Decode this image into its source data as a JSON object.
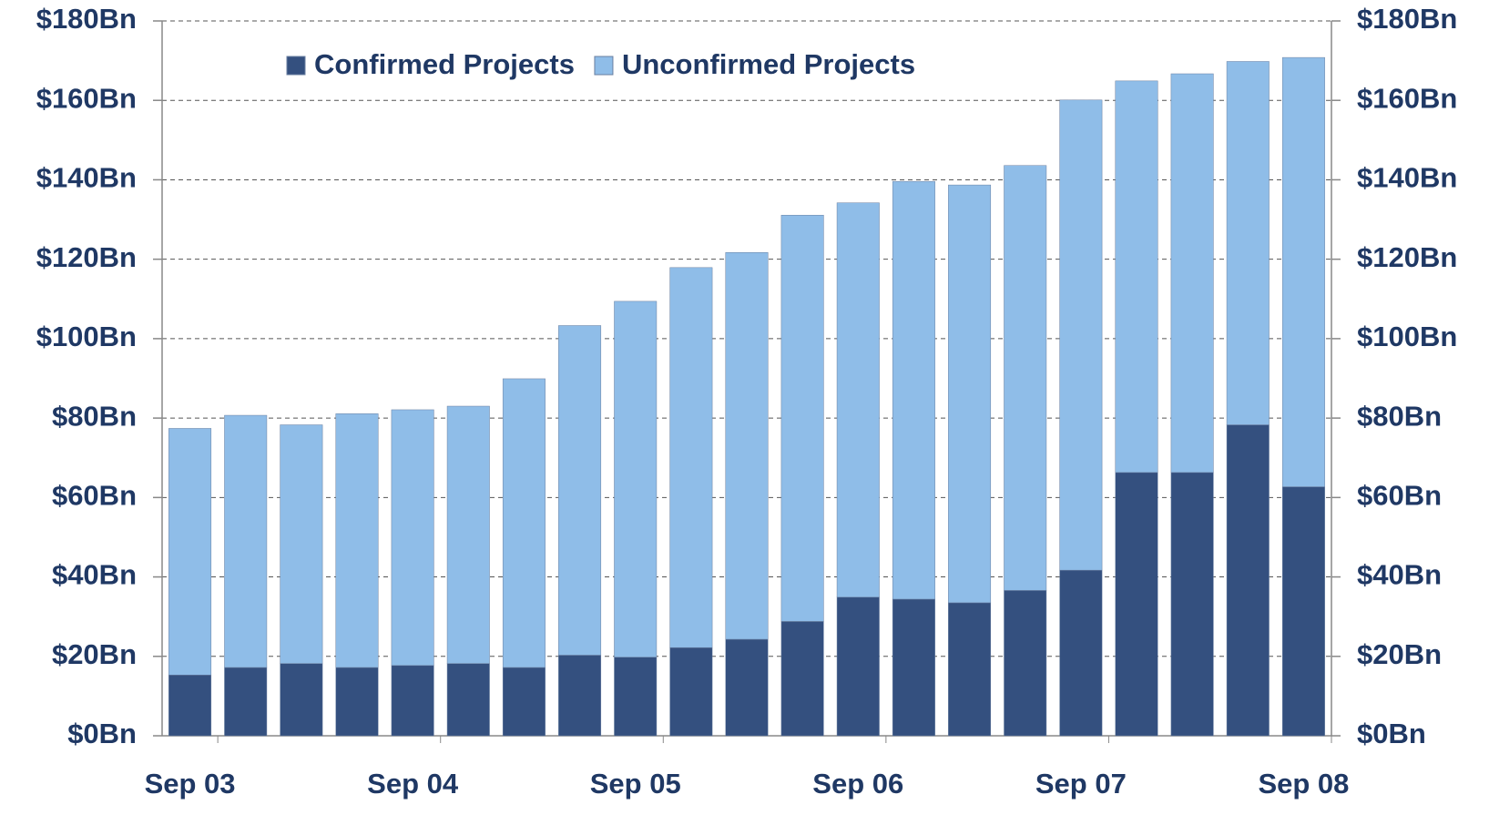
{
  "chart_data": {
    "type": "stacked_bar",
    "categories": [
      "Sep 03",
      null,
      null,
      null,
      "Sep 04",
      null,
      null,
      null,
      "Sep 05",
      null,
      null,
      null,
      "Sep 06",
      null,
      null,
      null,
      "Sep 07",
      null,
      null,
      null,
      "Sep 08"
    ],
    "series": [
      {
        "name": "Confirmed Projects",
        "color": "#34507f",
        "values": [
          15.3,
          17.2,
          18.2,
          17.2,
          17.7,
          18.2,
          17.2,
          20.3,
          19.8,
          22.2,
          24.3,
          28.8,
          34.9,
          34.4,
          33.5,
          36.6,
          41.7,
          66.3,
          66.3,
          78.3,
          62.7
        ]
      },
      {
        "name": "Unconfirmed Projects",
        "color": "#8fbde8",
        "values": [
          62.1,
          63.5,
          60.1,
          63.9,
          64.4,
          64.8,
          72.7,
          83.0,
          89.6,
          95.7,
          97.4,
          102.3,
          99.3,
          105.2,
          105.2,
          107.0,
          118.4,
          98.6,
          100.4,
          91.5,
          108.1
        ]
      }
    ],
    "ylim": [
      0,
      180
    ],
    "yticks": [
      {
        "value": 0,
        "label": "$0Bn"
      },
      {
        "value": 20,
        "label": "$20Bn"
      },
      {
        "value": 40,
        "label": "$40Bn"
      },
      {
        "value": 60,
        "label": "$60Bn"
      },
      {
        "value": 80,
        "label": "$80Bn"
      },
      {
        "value": 100,
        "label": "$100Bn"
      },
      {
        "value": 120,
        "label": "$120Bn"
      },
      {
        "value": 140,
        "label": "$140Bn"
      },
      {
        "value": 160,
        "label": "$160Bn"
      },
      {
        "value": 180,
        "label": "$180Bn"
      }
    ],
    "y2lim": [
      0,
      180
    ],
    "y2ticks": [
      {
        "value": 0,
        "label": "$0Bn"
      },
      {
        "value": 20,
        "label": "$20Bn"
      },
      {
        "value": 40,
        "label": "$40Bn"
      },
      {
        "value": 60,
        "label": "$60Bn"
      },
      {
        "value": 80,
        "label": "$80Bn"
      },
      {
        "value": 100,
        "label": "$100Bn"
      },
      {
        "value": 120,
        "label": "$120Bn"
      },
      {
        "value": 140,
        "label": "$140Bn"
      },
      {
        "value": 160,
        "label": "$160Bn"
      },
      {
        "value": 180,
        "label": "$180Bn"
      }
    ],
    "grid": true,
    "legend": "top"
  }
}
